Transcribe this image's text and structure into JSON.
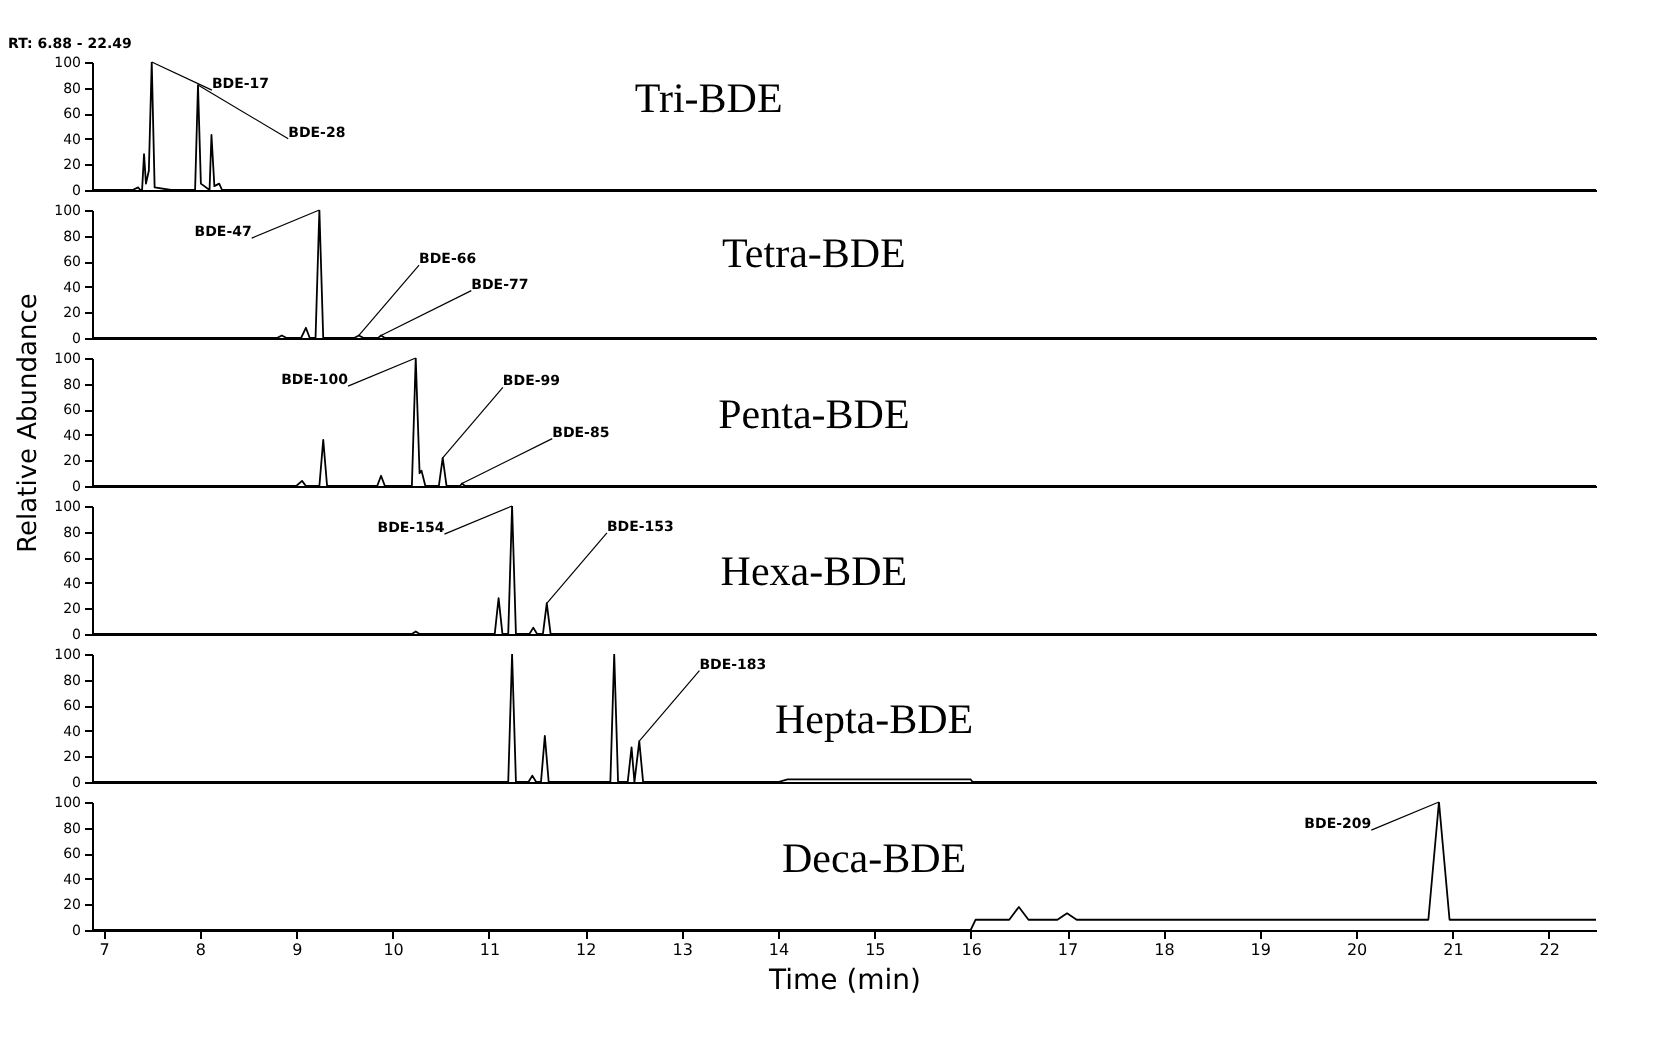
{
  "chart_data": [
    {
      "type": "line",
      "title": "Tri-BDE",
      "annotations": [
        "RT: 6.88 - 22.49",
        {
          "text": "BDE-17",
          "x": 7.5,
          "y": 100
        },
        {
          "text": "BDE-28",
          "x": 7.98,
          "y": 82
        }
      ],
      "series": [
        {
          "color": "#000000",
          "x": [
            6.88,
            7.3,
            7.36,
            7.38,
            7.4,
            7.42,
            7.44,
            7.47,
            7.5,
            7.53,
            7.7,
            7.95,
            7.98,
            8.01,
            8.1,
            8.12,
            8.15,
            8.2,
            8.23,
            22.49
          ],
          "values": [
            0,
            0,
            2,
            0,
            0,
            28,
            5,
            15,
            100,
            2,
            0,
            0,
            82,
            5,
            0,
            43,
            3,
            5,
            0,
            0
          ]
        }
      ],
      "xlim": [
        6.88,
        22.49
      ],
      "xticks": [
        7,
        8,
        9,
        10,
        11,
        12,
        13,
        14,
        15,
        16,
        17,
        18,
        19,
        20,
        21,
        22
      ],
      "ylim": [
        0,
        100
      ],
      "yticks": [
        0,
        20,
        40,
        60,
        80,
        100
      ],
      "tick_labels": "y",
      "grid": false
    },
    {
      "type": "line",
      "title": "Tetra-BDE",
      "annotations": [
        {
          "text": "BDE-47",
          "x": 9.24,
          "y": 100
        },
        {
          "text": "BDE-66",
          "x": 9.65,
          "y": 2
        },
        {
          "text": "BDE-77",
          "x": 9.88,
          "y": 2
        }
      ],
      "series": [
        {
          "color": "#000000",
          "x": [
            6.88,
            8.8,
            8.85,
            8.9,
            9.05,
            9.1,
            9.14,
            9.2,
            9.24,
            9.28,
            9.6,
            9.65,
            9.7,
            9.85,
            9.88,
            9.92,
            22.49
          ],
          "values": [
            0,
            0,
            2,
            0,
            0,
            8,
            0,
            0,
            100,
            0,
            0,
            2,
            0,
            0,
            2,
            0,
            0
          ]
        }
      ],
      "xlim": [
        6.88,
        22.49
      ],
      "xticks": [
        7,
        8,
        9,
        10,
        11,
        12,
        13,
        14,
        15,
        16,
        17,
        18,
        19,
        20,
        21,
        22
      ],
      "ylim": [
        0,
        100
      ],
      "yticks": [
        0,
        20,
        40,
        60,
        80,
        100
      ],
      "tick_labels": "y",
      "grid": false
    },
    {
      "type": "line",
      "title": "Penta-BDE",
      "ylabel": "Relative Abundance",
      "annotations": [
        {
          "text": "BDE-100",
          "x": 10.24,
          "y": 100
        },
        {
          "text": "BDE-99",
          "x": 10.52,
          "y": 22
        },
        {
          "text": "BDE-85",
          "x": 10.72,
          "y": 2
        }
      ],
      "series": [
        {
          "color": "#000000",
          "x": [
            6.88,
            9.0,
            9.06,
            9.1,
            9.24,
            9.28,
            9.32,
            9.84,
            9.88,
            9.92,
            10.2,
            10.24,
            10.28,
            10.3,
            10.34,
            10.48,
            10.52,
            10.56,
            10.7,
            10.72,
            10.75,
            22.49
          ],
          "values": [
            0,
            0,
            4,
            0,
            0,
            36,
            0,
            0,
            8,
            0,
            0,
            100,
            10,
            12,
            0,
            0,
            22,
            0,
            0,
            2,
            0,
            0
          ]
        }
      ],
      "xlim": [
        6.88,
        22.49
      ],
      "xticks": [
        7,
        8,
        9,
        10,
        11,
        12,
        13,
        14,
        15,
        16,
        17,
        18,
        19,
        20,
        21,
        22
      ],
      "ylim": [
        0,
        100
      ],
      "yticks": [
        0,
        20,
        40,
        60,
        80,
        100
      ],
      "tick_labels": "y",
      "grid": false
    },
    {
      "type": "line",
      "title": "Hexa-BDE",
      "annotations": [
        {
          "text": "BDE-154",
          "x": 11.24,
          "y": 100
        },
        {
          "text": "BDE-153",
          "x": 11.6,
          "y": 24
        }
      ],
      "series": [
        {
          "color": "#000000",
          "x": [
            6.88,
            10.2,
            10.24,
            10.28,
            11.06,
            11.1,
            11.14,
            11.2,
            11.24,
            11.28,
            11.42,
            11.46,
            11.5,
            11.56,
            11.6,
            11.64,
            22.49
          ],
          "values": [
            0,
            0,
            2,
            0,
            0,
            28,
            0,
            0,
            100,
            0,
            0,
            5,
            0,
            0,
            24,
            0,
            0
          ]
        }
      ],
      "xlim": [
        6.88,
        22.49
      ],
      "xticks": [
        7,
        8,
        9,
        10,
        11,
        12,
        13,
        14,
        15,
        16,
        17,
        18,
        19,
        20,
        21,
        22
      ],
      "ylim": [
        0,
        100
      ],
      "yticks": [
        0,
        20,
        40,
        60,
        80,
        100
      ],
      "tick_labels": "y",
      "grid": false
    },
    {
      "type": "line",
      "title": "Hepta-BDE",
      "annotations": [
        {
          "text": "BDE-183",
          "x": 12.56,
          "y": 32
        }
      ],
      "series": [
        {
          "color": "#000000",
          "x": [
            6.88,
            11.2,
            11.24,
            11.28,
            11.41,
            11.45,
            11.49,
            11.54,
            11.58,
            11.62,
            12.26,
            12.3,
            12.34,
            12.44,
            12.48,
            12.51,
            12.56,
            12.6,
            14.0,
            14.1,
            16.0,
            16.02,
            22.49
          ],
          "values": [
            0,
            0,
            100,
            0,
            0,
            5,
            0,
            0,
            36,
            0,
            0,
            100,
            0,
            0,
            27,
            0,
            32,
            0,
            0,
            2,
            2,
            0,
            0
          ]
        }
      ],
      "xlim": [
        6.88,
        22.49
      ],
      "xticks": [
        7,
        8,
        9,
        10,
        11,
        12,
        13,
        14,
        15,
        16,
        17,
        18,
        19,
        20,
        21,
        22
      ],
      "ylim": [
        0,
        100
      ],
      "yticks": [
        0,
        20,
        40,
        60,
        80,
        100
      ],
      "tick_labels": "y",
      "grid": false
    },
    {
      "type": "line",
      "title": "Deca-BDE",
      "xlabel": "Time (min)",
      "annotations": [
        {
          "text": "BDE-209",
          "x": 20.86,
          "y": 100
        }
      ],
      "series": [
        {
          "color": "#000000",
          "x": [
            6.88,
            16.0,
            16.05,
            16.4,
            16.5,
            16.6,
            16.9,
            17.0,
            17.1,
            20.75,
            20.86,
            20.97,
            22.49
          ],
          "values": [
            0,
            0,
            8,
            8,
            18,
            8,
            8,
            13,
            8,
            8,
            100,
            8,
            8
          ]
        }
      ],
      "xlim": [
        6.88,
        22.49
      ],
      "xticks": [
        7,
        8,
        9,
        10,
        11,
        12,
        13,
        14,
        15,
        16,
        17,
        18,
        19,
        20,
        21,
        22
      ],
      "ylim": [
        0,
        100
      ],
      "yticks": [
        0,
        20,
        40,
        60,
        80,
        100
      ],
      "grid": false
    }
  ]
}
